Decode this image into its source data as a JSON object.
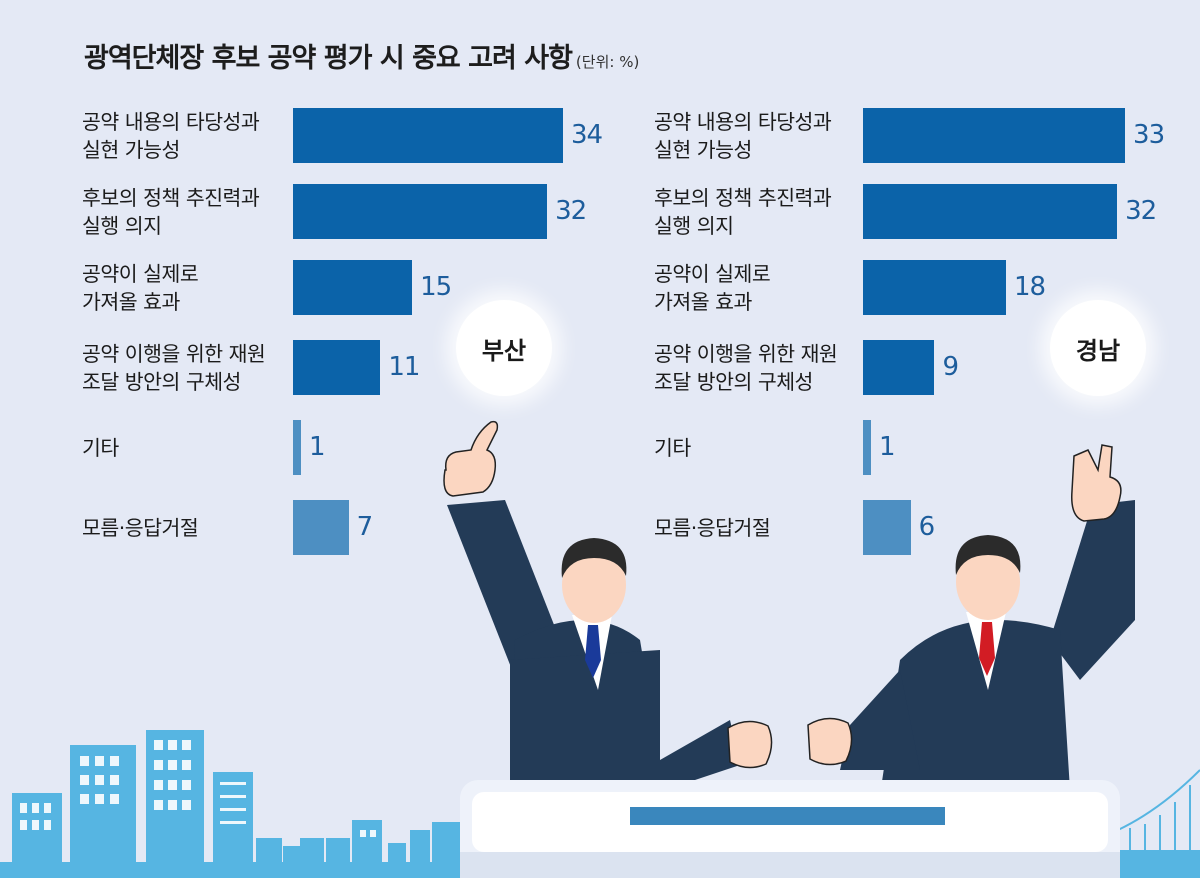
{
  "title": "광역단체장 후보 공약 평가 시 중요 고려 사항",
  "unit_note": "(단위: %)",
  "colors": {
    "bar_main": "#0b63a9",
    "bar_light": "#4d8fc2",
    "value_text": "#1d5d9c",
    "background": "#e4e9f5",
    "suit": "#233b57",
    "skin": "#fbd6c1",
    "city": "#56b5e2",
    "tie_busan": "#1a3a9a",
    "tie_gyeongnam": "#d21c24"
  },
  "chart_data": [
    {
      "type": "bar",
      "orientation": "horizontal",
      "region": "부산",
      "categories": [
        "공약 내용의 타당성과\n실현 가능성",
        "후보의 정책 추진력과\n실행 의지",
        "공약이 실제로\n가져올 효과",
        "공약 이행을 위한 재원\n조달 방안의 구체성",
        "기타",
        "모름·응답거절"
      ],
      "values": [
        34,
        32,
        15,
        11,
        1,
        7
      ],
      "value_labels": [
        "34",
        "32",
        "15",
        "11",
        "1",
        "7"
      ],
      "xlim": [
        0,
        34
      ]
    },
    {
      "type": "bar",
      "orientation": "horizontal",
      "region": "경남",
      "categories": [
        "공약 내용의 타당성과\n실현 가능성",
        "후보의 정책 추진력과\n실행 의지",
        "공약이 실제로\n가져올 효과",
        "공약 이행을 위한 재원\n조달 방안의 구체성",
        "기타",
        "모름·응답거절"
      ],
      "values": [
        33,
        32,
        18,
        9,
        1,
        6
      ],
      "value_labels": [
        "33",
        "32",
        "18",
        "9",
        "1",
        "6"
      ],
      "xlim": [
        0,
        34
      ]
    }
  ],
  "illustration": {
    "icons": [
      "candidate-busan-icon",
      "candidate-gyeongnam-icon",
      "city-skyline-icon",
      "podium-icon",
      "bridge-icon"
    ]
  }
}
